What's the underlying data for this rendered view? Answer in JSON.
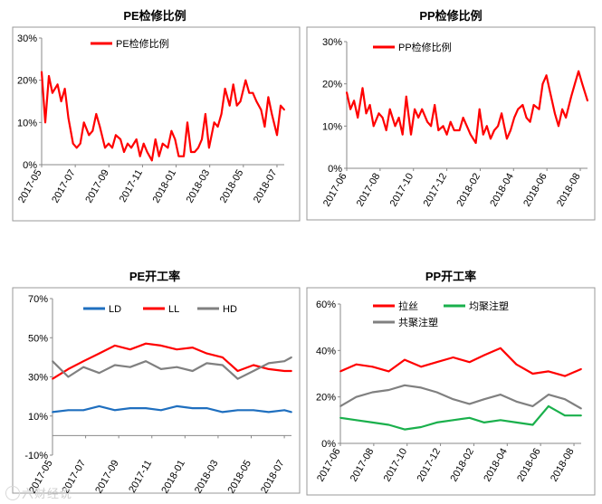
{
  "chart_data": [
    {
      "type": "line",
      "title": "PE检修比例",
      "x_ticks": [
        "2017-05",
        "2017-07",
        "2017-09",
        "2017-11",
        "2018-01",
        "2018-03",
        "2018-05",
        "2018-07"
      ],
      "x_range": [
        "2017-05-01",
        "2018-08-15"
      ],
      "y_ticks": [
        "0%",
        "10%",
        "20%",
        "30%"
      ],
      "ylim": [
        0,
        30
      ],
      "legend_position": "top-left",
      "grid": false,
      "series": [
        {
          "name": "PE检修比例",
          "color": "#ff0000",
          "x": [
            "2017-05-01",
            "2017-05-08",
            "2017-05-15",
            "2017-05-22",
            "2017-06-01",
            "2017-06-08",
            "2017-06-15",
            "2017-06-22",
            "2017-07-01",
            "2017-07-08",
            "2017-07-15",
            "2017-07-22",
            "2017-08-01",
            "2017-08-08",
            "2017-08-15",
            "2017-08-22",
            "2017-09-01",
            "2017-09-08",
            "2017-09-15",
            "2017-09-22",
            "2017-10-01",
            "2017-10-08",
            "2017-10-15",
            "2017-10-22",
            "2017-11-01",
            "2017-11-08",
            "2017-11-15",
            "2017-11-22",
            "2017-12-01",
            "2017-12-08",
            "2017-12-15",
            "2017-12-22",
            "2018-01-01",
            "2018-01-08",
            "2018-01-15",
            "2018-01-22",
            "2018-02-01",
            "2018-02-08",
            "2018-02-15",
            "2018-02-22",
            "2018-03-01",
            "2018-03-08",
            "2018-03-15",
            "2018-03-22",
            "2018-04-01",
            "2018-04-08",
            "2018-04-15",
            "2018-04-22",
            "2018-05-01",
            "2018-05-08",
            "2018-05-15",
            "2018-05-22",
            "2018-06-01",
            "2018-06-08",
            "2018-06-15",
            "2018-06-22",
            "2018-07-01",
            "2018-07-08",
            "2018-07-15",
            "2018-07-22",
            "2018-08-01",
            "2018-08-08",
            "2018-08-15"
          ],
          "values": [
            22,
            10,
            21,
            17,
            19,
            15,
            18,
            11,
            5,
            4,
            5,
            10,
            7,
            8,
            12,
            9,
            4,
            5,
            4,
            7,
            6,
            3,
            5,
            4,
            6,
            2,
            5,
            3,
            1,
            6,
            2,
            5,
            4,
            8,
            6,
            2,
            2,
            10,
            3,
            3,
            4,
            6,
            12,
            4,
            10,
            9,
            12,
            18,
            14,
            19,
            14,
            15,
            20,
            17,
            17,
            15,
            13,
            9,
            16,
            12,
            7,
            14,
            13
          ]
        }
      ]
    },
    {
      "type": "line",
      "title": "PP检修比例",
      "x_ticks": [
        "2017-06",
        "2017-08",
        "2017-10",
        "2017-12",
        "2018-02",
        "2018-04",
        "2018-06",
        "2018-08"
      ],
      "x_range": [
        "2017-06-01",
        "2018-09-01"
      ],
      "y_ticks": [
        "0%",
        "10%",
        "20%",
        "30%"
      ],
      "ylim": [
        0,
        30
      ],
      "legend_position": "top-left",
      "grid": false,
      "series": [
        {
          "name": "PP检修比例",
          "color": "#ff0000",
          "x": [
            "2017-06-01",
            "2017-06-08",
            "2017-06-15",
            "2017-06-22",
            "2017-07-01",
            "2017-07-08",
            "2017-07-15",
            "2017-07-22",
            "2017-08-01",
            "2017-08-08",
            "2017-08-15",
            "2017-08-22",
            "2017-09-01",
            "2017-09-08",
            "2017-09-15",
            "2017-09-22",
            "2017-10-01",
            "2017-10-08",
            "2017-10-15",
            "2017-10-22",
            "2017-11-01",
            "2017-11-08",
            "2017-11-15",
            "2017-11-22",
            "2017-12-01",
            "2017-12-08",
            "2017-12-15",
            "2017-12-22",
            "2018-01-01",
            "2018-01-08",
            "2018-01-15",
            "2018-01-22",
            "2018-02-01",
            "2018-02-08",
            "2018-02-15",
            "2018-02-22",
            "2018-03-01",
            "2018-03-08",
            "2018-03-15",
            "2018-03-22",
            "2018-04-01",
            "2018-04-08",
            "2018-04-15",
            "2018-04-22",
            "2018-05-01",
            "2018-05-08",
            "2018-05-15",
            "2018-05-22",
            "2018-06-01",
            "2018-06-08",
            "2018-06-15",
            "2018-06-22",
            "2018-07-01",
            "2018-07-08",
            "2018-07-15",
            "2018-07-22",
            "2018-08-01",
            "2018-08-08",
            "2018-08-15",
            "2018-08-22",
            "2018-09-01"
          ],
          "values": [
            18,
            14,
            16,
            12,
            19,
            13,
            15,
            10,
            13,
            12,
            9,
            14,
            10,
            12,
            8,
            17,
            8,
            14,
            12,
            14,
            11,
            10,
            15,
            9,
            10,
            8,
            11,
            9,
            9,
            12,
            10,
            8,
            6,
            14,
            8,
            10,
            7,
            9,
            10,
            13,
            7,
            9,
            12,
            14,
            15,
            12,
            11,
            15,
            14,
            20,
            22,
            18,
            13,
            10,
            14,
            12,
            17,
            20,
            23,
            20,
            16
          ]
        }
      ]
    },
    {
      "type": "line",
      "title": "PE开工率",
      "x_ticks": [
        "2017-05",
        "2017-07",
        "2017-09",
        "2017-11",
        "2018-01",
        "2018-03",
        "2018-05",
        "2018-07"
      ],
      "x_range": [
        "2017-05-01",
        "2018-08-15"
      ],
      "y_ticks": [
        "-10%",
        "10%",
        "30%",
        "50%",
        "70%"
      ],
      "ylim": [
        -10,
        70
      ],
      "legend_position": "top",
      "grid": false,
      "series": [
        {
          "name": "LD",
          "color": "#1f6fbf",
          "x": [
            "2017-05-01",
            "2017-06-01",
            "2017-07-01",
            "2017-08-01",
            "2017-09-01",
            "2017-10-01",
            "2017-11-01",
            "2017-12-01",
            "2018-01-01",
            "2018-02-01",
            "2018-03-01",
            "2018-04-01",
            "2018-05-01",
            "2018-06-01",
            "2018-07-01",
            "2018-08-01",
            "2018-08-15"
          ],
          "values": [
            12,
            13,
            13,
            15,
            13,
            14,
            14,
            13,
            15,
            14,
            14,
            12,
            13,
            13,
            12,
            13,
            12
          ]
        },
        {
          "name": "LL",
          "color": "#ff0000",
          "x": [
            "2017-05-01",
            "2017-06-01",
            "2017-07-01",
            "2017-08-01",
            "2017-09-01",
            "2017-10-01",
            "2017-11-01",
            "2017-12-01",
            "2018-01-01",
            "2018-02-01",
            "2018-03-01",
            "2018-04-01",
            "2018-05-01",
            "2018-06-01",
            "2018-07-01",
            "2018-08-01",
            "2018-08-15"
          ],
          "values": [
            29,
            34,
            38,
            42,
            46,
            44,
            47,
            46,
            44,
            45,
            42,
            40,
            33,
            36,
            34,
            33,
            33
          ]
        },
        {
          "name": "HD",
          "color": "#808080",
          "x": [
            "2017-05-01",
            "2017-06-01",
            "2017-07-01",
            "2017-08-01",
            "2017-09-01",
            "2017-10-01",
            "2017-11-01",
            "2017-12-01",
            "2018-01-01",
            "2018-02-01",
            "2018-03-01",
            "2018-04-01",
            "2018-05-01",
            "2018-06-01",
            "2018-07-01",
            "2018-08-01",
            "2018-08-15"
          ],
          "values": [
            38,
            30,
            35,
            32,
            36,
            35,
            38,
            34,
            35,
            33,
            37,
            36,
            29,
            33,
            37,
            38,
            40
          ]
        }
      ]
    },
    {
      "type": "line",
      "title": "PP开工率",
      "x_ticks": [
        "2017-06",
        "2017-08",
        "2017-10",
        "2017-12",
        "2018-02",
        "2018-04",
        "2018-06",
        "2018-08"
      ],
      "x_range": [
        "2017-06-01",
        "2018-09-01"
      ],
      "y_ticks": [
        "0%",
        "20%",
        "40%",
        "60%"
      ],
      "ylim": [
        0,
        60
      ],
      "legend_position": "top-left",
      "grid": false,
      "series": [
        {
          "name": "拉丝",
          "color": "#ff0000",
          "x": [
            "2017-06-01",
            "2017-07-01",
            "2017-08-01",
            "2017-09-01",
            "2017-10-01",
            "2017-11-01",
            "2017-12-01",
            "2018-01-01",
            "2018-02-01",
            "2018-03-01",
            "2018-04-01",
            "2018-05-01",
            "2018-06-01",
            "2018-07-01",
            "2018-08-01",
            "2018-09-01"
          ],
          "values": [
            31,
            34,
            33,
            31,
            36,
            33,
            35,
            37,
            35,
            38,
            41,
            34,
            30,
            31,
            29,
            32
          ]
        },
        {
          "name": "均聚注塑",
          "color": "#1ab04c",
          "x": [
            "2017-06-01",
            "2017-07-01",
            "2017-08-01",
            "2017-09-01",
            "2017-10-01",
            "2017-11-01",
            "2017-12-01",
            "2018-01-01",
            "2018-02-01",
            "2018-03-01",
            "2018-04-01",
            "2018-05-01",
            "2018-06-01",
            "2018-07-01",
            "2018-08-01",
            "2018-09-01"
          ],
          "values": [
            11,
            10,
            9,
            8,
            6,
            7,
            9,
            10,
            11,
            9,
            10,
            9,
            8,
            16,
            12,
            12
          ]
        },
        {
          "name": "共聚注塑",
          "color": "#808080",
          "x": [
            "2017-06-01",
            "2017-07-01",
            "2017-08-01",
            "2017-09-01",
            "2017-10-01",
            "2017-11-01",
            "2017-12-01",
            "2018-01-01",
            "2018-02-01",
            "2018-03-01",
            "2018-04-01",
            "2018-05-01",
            "2018-06-01",
            "2018-07-01",
            "2018-08-01",
            "2018-09-01"
          ],
          "values": [
            16,
            20,
            22,
            23,
            25,
            24,
            22,
            19,
            17,
            19,
            21,
            18,
            16,
            21,
            19,
            15
          ]
        }
      ]
    }
  ],
  "watermark": "六财经说"
}
